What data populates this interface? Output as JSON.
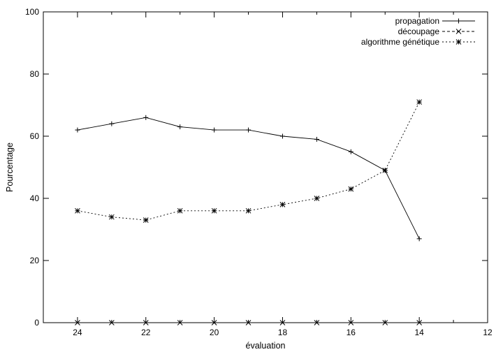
{
  "chart_data": {
    "type": "line",
    "title": "",
    "xlabel": "évaluation",
    "ylabel": "Pourcentage",
    "xlim": [
      25,
      12
    ],
    "ylim": [
      0,
      100
    ],
    "x_reversed": true,
    "x_ticks": [
      "24",
      "22",
      "20",
      "18",
      "16",
      "14",
      "12"
    ],
    "y_ticks": [
      "0",
      "20",
      "40",
      "60",
      "80",
      "100"
    ],
    "grid": false,
    "legend_position": "top-right",
    "x": [
      24,
      23,
      22,
      21,
      20,
      19,
      18,
      17,
      16,
      15,
      14
    ],
    "series": [
      {
        "name": "propagation",
        "line_style": "solid",
        "marker": "plus",
        "values": [
          62,
          64,
          66,
          63,
          62,
          62,
          60,
          59,
          55,
          49,
          27
        ]
      },
      {
        "name": "découpage",
        "line_style": "dashed",
        "marker": "cross",
        "values": [
          0,
          0,
          0,
          0,
          0,
          0,
          0,
          0,
          0,
          0,
          0
        ]
      },
      {
        "name": "algorithme génétique",
        "line_style": "dotted",
        "marker": "star",
        "values": [
          36,
          34,
          33,
          36,
          36,
          36,
          38,
          40,
          43,
          49,
          71
        ]
      }
    ]
  }
}
